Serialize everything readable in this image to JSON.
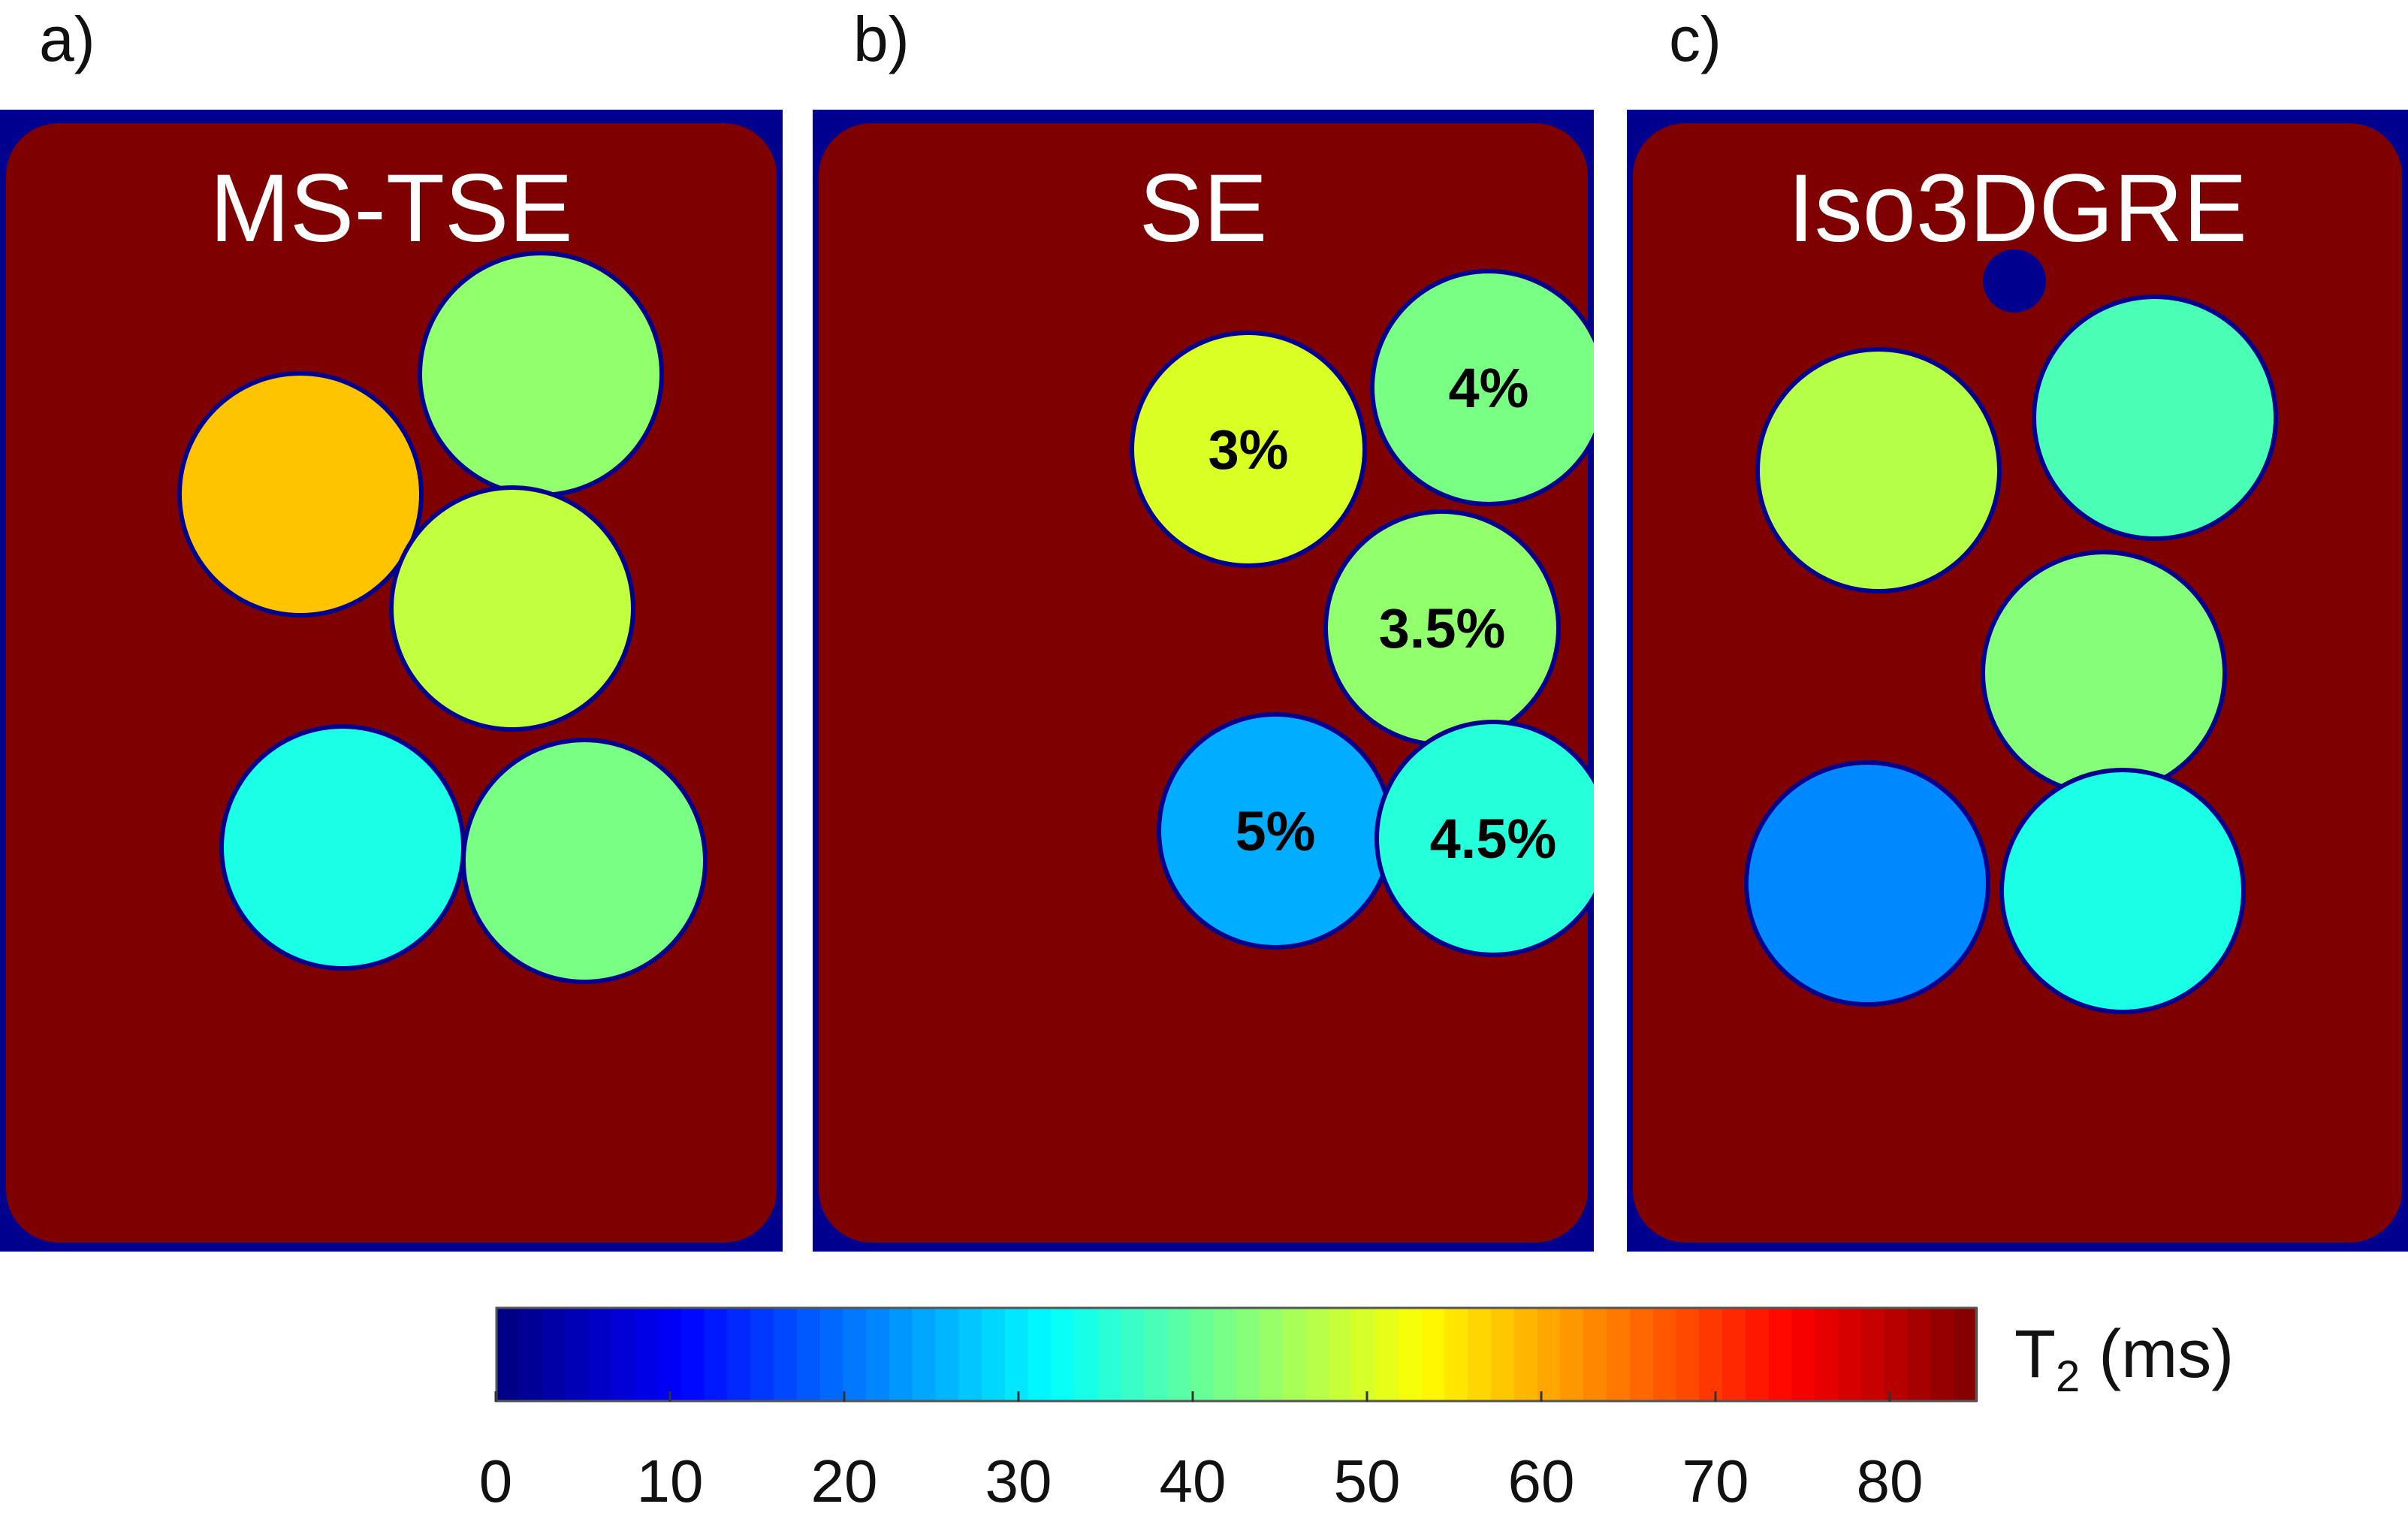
{
  "panels": [
    {
      "letter": "a)",
      "title": "MS-TSE",
      "phantoms": [
        {
          "t2_ms": 58,
          "label": ""
        },
        {
          "t2_ms": 44,
          "label": ""
        },
        {
          "t2_ms": 48,
          "label": ""
        },
        {
          "t2_ms": 34,
          "label": ""
        },
        {
          "t2_ms": 42,
          "label": ""
        }
      ]
    },
    {
      "letter": "b)",
      "title": "SE",
      "phantoms": [
        {
          "t2_ms": 50,
          "label": "3%"
        },
        {
          "t2_ms": 42,
          "label": "4%"
        },
        {
          "t2_ms": 44,
          "label": "3.5%"
        },
        {
          "t2_ms": 25,
          "label": "5%"
        },
        {
          "t2_ms": 35,
          "label": "4.5%"
        }
      ]
    },
    {
      "letter": "c)",
      "title": "Iso3DGRE",
      "phantoms": [
        {
          "t2_ms": 47,
          "label": ""
        },
        {
          "t2_ms": 38,
          "label": ""
        },
        {
          "t2_ms": 43,
          "label": ""
        },
        {
          "t2_ms": 22,
          "label": ""
        },
        {
          "t2_ms": 34,
          "label": ""
        }
      ]
    }
  ],
  "colorbar": {
    "label_main": "T",
    "label_sub": "2",
    "label_unit": " (ms)",
    "min": 0,
    "max": 85,
    "ticks": [
      "0",
      "10",
      "20",
      "30",
      "40",
      "50",
      "60",
      "70",
      "80"
    ],
    "colormap": "jet"
  },
  "colors": {
    "background": "#7f0000",
    "outside": "#00008f",
    "panel_title": "#ffffff",
    "phantom_label": "#000000"
  }
}
